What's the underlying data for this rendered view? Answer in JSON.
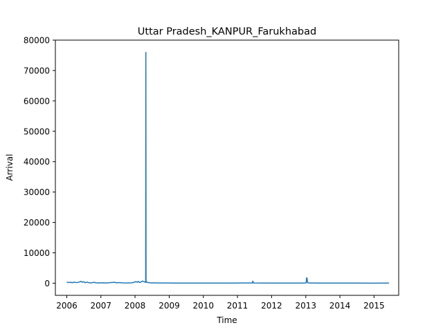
{
  "chart_data": {
    "type": "line",
    "title": "Uttar Pradesh_KANPUR_Farukhabad",
    "xlabel": "Time",
    "ylabel": "Arrival",
    "xlim": [
      "2005-09-01",
      "2015-09-22"
    ],
    "ylim": [
      -4000,
      80000
    ],
    "x_ticks": [
      "2006",
      "2007",
      "2008",
      "2009",
      "2010",
      "2011",
      "2012",
      "2013",
      "2014",
      "2015"
    ],
    "y_ticks": [
      0,
      10000,
      20000,
      30000,
      40000,
      50000,
      60000,
      70000,
      80000
    ],
    "grid": false,
    "legend": "none",
    "line_color": "#1f77b4",
    "series": [
      {
        "x": [
          "2006-01-01",
          "2006-01-20",
          "2006-02-10",
          "2006-03-01",
          "2006-03-20",
          "2006-04-10",
          "2006-05-01",
          "2006-05-15",
          "2006-06-01",
          "2006-06-15",
          "2006-07-01",
          "2006-07-15",
          "2006-08-01",
          "2006-08-20",
          "2006-09-10",
          "2006-10-01",
          "2006-10-20",
          "2006-11-10",
          "2006-12-01",
          "2006-12-20",
          "2007-01-10",
          "2007-02-01",
          "2007-03-01",
          "2007-04-01",
          "2007-05-01",
          "2007-06-01",
          "2007-06-15",
          "2007-07-01",
          "2007-08-01",
          "2007-09-01",
          "2007-10-01",
          "2007-11-01",
          "2007-12-01",
          "2007-12-20",
          "2008-01-10",
          "2008-01-25",
          "2008-02-05",
          "2008-02-20",
          "2008-03-05",
          "2008-03-20",
          "2008-04-05",
          "2008-04-20",
          "2008-04-24",
          "2008-04-26",
          "2008-04-28",
          "2008-04-30",
          "2008-05-05",
          "2008-05-20",
          "2008-06-01",
          "2008-07-01",
          "2008-08-01",
          "2008-09-01",
          "2008-10-01",
          "2008-12-01",
          "2009-03-01",
          "2009-06-01",
          "2009-09-01",
          "2009-12-01",
          "2010-06-01",
          "2010-12-01",
          "2011-03-01",
          "2011-06-10",
          "2011-06-15",
          "2011-06-20",
          "2011-07-01",
          "2011-12-01",
          "2012-06-01",
          "2012-12-01",
          "2013-01-05",
          "2013-01-10",
          "2013-01-15",
          "2013-01-20",
          "2013-02-01",
          "2013-06-01",
          "2013-12-01",
          "2014-06-01",
          "2014-12-01",
          "2015-06-10"
        ],
        "y": [
          400,
          200,
          300,
          150,
          350,
          200,
          250,
          400,
          600,
          300,
          500,
          150,
          350,
          200,
          100,
          150,
          300,
          120,
          80,
          150,
          100,
          120,
          80,
          150,
          250,
          300,
          100,
          200,
          150,
          100,
          80,
          100,
          120,
          300,
          500,
          300,
          600,
          200,
          400,
          700,
          500,
          300,
          500,
          76000,
          500,
          300,
          400,
          200,
          150,
          100,
          100,
          80,
          80,
          60,
          50,
          50,
          50,
          50,
          50,
          50,
          60,
          60,
          700,
          80,
          60,
          50,
          40,
          40,
          80,
          1800,
          1600,
          150,
          60,
          40,
          40,
          30,
          20,
          30
        ]
      }
    ]
  }
}
